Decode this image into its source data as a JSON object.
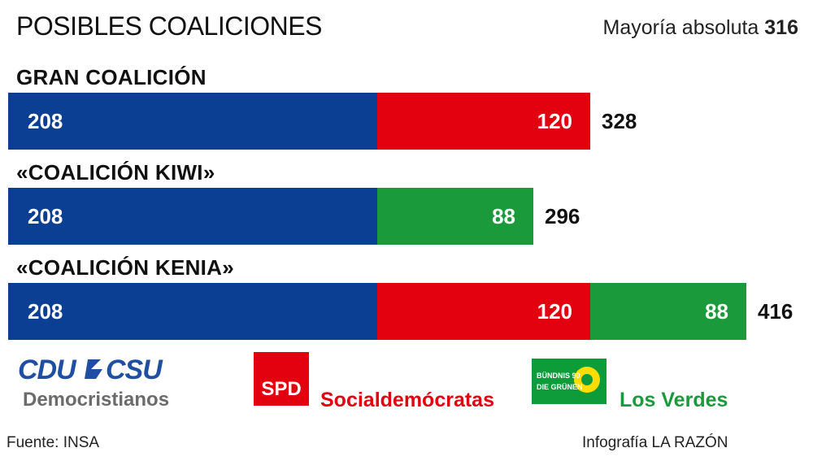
{
  "header": {
    "title": "POSIBLES COALICIONES",
    "majority_label": "Mayoría absoluta",
    "majority_value": "316"
  },
  "colors": {
    "cdu": "#0a3f94",
    "spd": "#e3000f",
    "gruene": "#1a9a3a"
  },
  "chart_data": {
    "type": "bar",
    "orientation": "horizontal",
    "stacked": true,
    "title": "POSIBLES COALICIONES",
    "annotation": "Mayoría absoluta 316",
    "categories": [
      "GRAN COALICIÓN",
      "«COALICIÓN KIWI»",
      "«COALICIÓN KENIA»"
    ],
    "series": [
      {
        "name": "Democristianos",
        "color": "#0a3f94",
        "values": [
          208,
          208,
          208
        ]
      },
      {
        "name": "Socialdemócratas",
        "color": "#e3000f",
        "values": [
          120,
          0,
          120
        ]
      },
      {
        "name": "Los Verdes",
        "color": "#1a9a3a",
        "values": [
          0,
          88,
          88
        ]
      }
    ],
    "totals": [
      "328",
      "296",
      "416"
    ],
    "grid": false,
    "legend": "bottom"
  },
  "legend": {
    "cdu_logo_text": "CDU CSU",
    "cdu_name": "Democristianos",
    "spd_logo_text": "SPD",
    "spd_name": "Socialdemócratas",
    "gruene_logo_text": "BÜNDNIS 90 DIE GRÜNEN",
    "gruene_name": "Los Verdes"
  },
  "footer": {
    "source": "Fuente: INSA",
    "credit": "Infografía LA RAZÓN"
  }
}
